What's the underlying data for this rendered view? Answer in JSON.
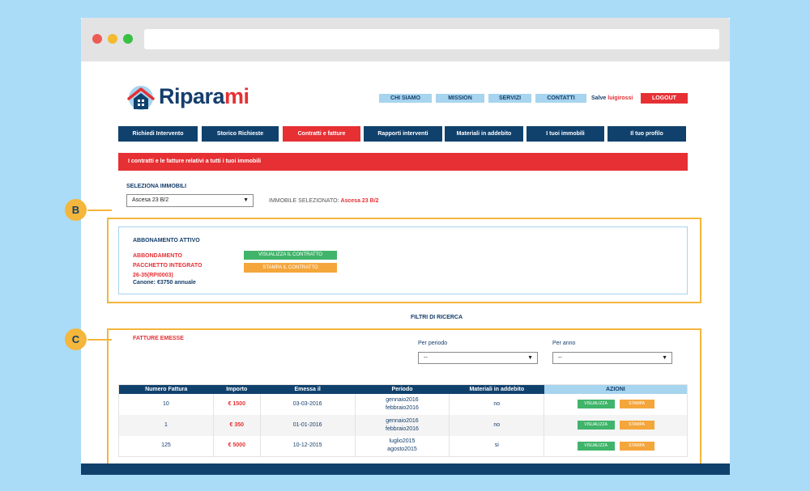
{
  "header": {
    "logo_text": "Ripara",
    "logo_accent": "mi",
    "nav": [
      "CHI SIAMO",
      "MISSION",
      "SERVIZI",
      "CONTATTI"
    ],
    "greeting": "Salve",
    "username": "luigirossi",
    "logout": "LOGOUT"
  },
  "main_nav": [
    "Richiedi Intervento",
    "Storico Richieste",
    "Contratti e fatture",
    "Rapporti interventi",
    "Materiali in addebito",
    "I tuoi immobili",
    "Il tuo profilo"
  ],
  "banner": "I contratti e le fatture relativi a tutti i tuoi immobili",
  "property": {
    "label": "SELEZIONA IMMOBILI",
    "selected_value": "Ascesa 23 B/2",
    "selected_label": "IMMOBILE SELEZIONATO:",
    "selected_name": "Ascesa 23 B/2"
  },
  "subscription": {
    "badge": "B",
    "title": "ABBONAMENTO ATTIVO",
    "name_line1": "ABBONDAMENTO",
    "name_line2": "PACCHETTO INTEGRATO",
    "name_line3": "26-35(RPI0003)",
    "canone": "Canone: €3750 annuale",
    "view_button": "VISUALIZZA IL CONTRATTO",
    "print_button": "STAMPA IL CONTRATTO"
  },
  "filters": {
    "title": "FILTRI DI RICERCA",
    "period_label": "Per periodo",
    "period_value": "--",
    "year_label": "Per anno",
    "year_value": "--"
  },
  "invoices": {
    "badge": "C",
    "title": "FATTURE EMESSE",
    "columns": [
      "Numero Fattura",
      "Importo",
      "Emessa il",
      "Periodo",
      "Materiali in addebito",
      "AZIONI"
    ],
    "rows": [
      {
        "number": "10",
        "amount": "€ 1500",
        "date": "03-03-2016",
        "period1": "gennaio2016",
        "period2": "febbraio2016",
        "materials": "no"
      },
      {
        "number": "1",
        "amount": "€ 350",
        "date": "01-01-2016",
        "period1": "gennaio2016",
        "period2": "febbraio2016",
        "materials": "no"
      },
      {
        "number": "125",
        "amount": "€ 5000",
        "date": "10-12-2015",
        "period1": "luglio2015",
        "period2": "agosto2015",
        "materials": "si"
      }
    ],
    "view_label": "VISUALIZZA",
    "print_label": "STAMPA"
  },
  "colors": {
    "navy": "#10416d",
    "red": "#e63034",
    "light_blue": "#a7d4ef",
    "orange": "#f4b63b",
    "green": "#40b46a"
  }
}
